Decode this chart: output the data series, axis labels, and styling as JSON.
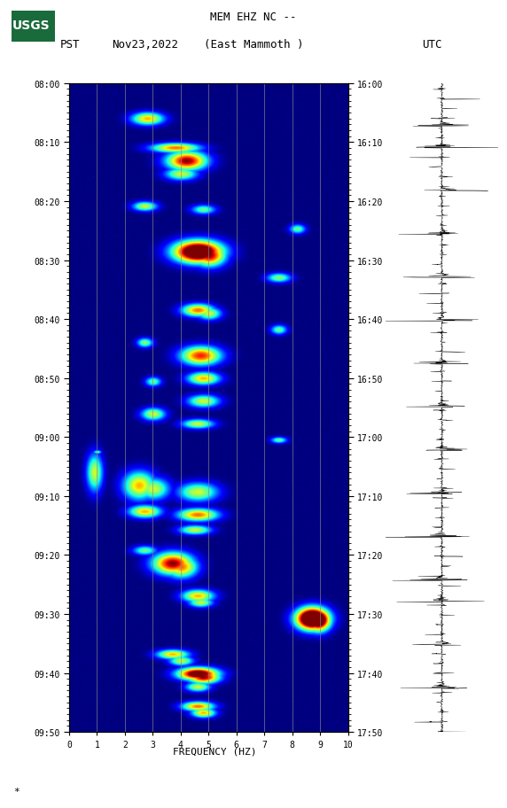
{
  "title_line1": "MEM EHZ NC --",
  "title_line2": "(East Mammoth )",
  "left_label": "PST",
  "date_label": "Nov23,2022",
  "right_label": "UTC",
  "freq_label": "FREQUENCY (HZ)",
  "left_yticks": [
    "08:00",
    "08:10",
    "08:20",
    "08:30",
    "08:40",
    "08:50",
    "09:00",
    "09:10",
    "09:20",
    "09:30",
    "09:40",
    "09:50"
  ],
  "right_yticks": [
    "16:00",
    "16:10",
    "16:20",
    "16:30",
    "16:40",
    "16:50",
    "17:00",
    "17:10",
    "17:20",
    "17:30",
    "17:40",
    "17:50"
  ],
  "xticks": [
    0,
    1,
    2,
    3,
    4,
    5,
    6,
    7,
    8,
    9,
    10
  ],
  "freq_min": 0,
  "freq_max": 10,
  "background_color": "#ffffff",
  "usgs_green": "#1a6b3c",
  "grid_color": "#888888",
  "grid_lines_x": [
    1,
    2,
    3,
    4,
    5,
    6,
    7,
    8,
    9
  ],
  "fig_width": 5.52,
  "fig_height": 8.93,
  "events": [
    [
      0.055,
      0.28,
      0.008,
      0.04,
      1.8
    ],
    [
      0.1,
      0.38,
      0.006,
      0.06,
      2.0
    ],
    [
      0.12,
      0.42,
      0.01,
      0.05,
      2.5
    ],
    [
      0.14,
      0.4,
      0.008,
      0.04,
      1.5
    ],
    [
      0.19,
      0.27,
      0.005,
      0.03,
      1.5
    ],
    [
      0.195,
      0.48,
      0.005,
      0.03,
      1.2
    ],
    [
      0.225,
      0.82,
      0.005,
      0.02,
      1.2
    ],
    [
      0.26,
      0.46,
      0.012,
      0.06,
      3.5
    ],
    [
      0.265,
      0.5,
      0.012,
      0.04,
      2.5
    ],
    [
      0.3,
      0.75,
      0.005,
      0.03,
      1.3
    ],
    [
      0.35,
      0.46,
      0.008,
      0.04,
      2.0
    ],
    [
      0.355,
      0.5,
      0.008,
      0.03,
      1.5
    ],
    [
      0.38,
      0.75,
      0.005,
      0.02,
      1.2
    ],
    [
      0.4,
      0.27,
      0.005,
      0.02,
      1.3
    ],
    [
      0.42,
      0.47,
      0.01,
      0.05,
      2.2
    ],
    [
      0.455,
      0.48,
      0.008,
      0.04,
      1.8
    ],
    [
      0.46,
      0.3,
      0.005,
      0.02,
      1.2
    ],
    [
      0.49,
      0.48,
      0.007,
      0.04,
      1.5
    ],
    [
      0.51,
      0.3,
      0.008,
      0.03,
      1.5
    ],
    [
      0.525,
      0.46,
      0.006,
      0.04,
      1.5
    ],
    [
      0.55,
      0.75,
      0.004,
      0.02,
      1.2
    ],
    [
      0.57,
      0.1,
      0.003,
      0.01,
      1.3
    ],
    [
      0.6,
      0.09,
      0.02,
      0.02,
      1.5
    ],
    [
      0.62,
      0.25,
      0.015,
      0.04,
      1.8
    ],
    [
      0.625,
      0.3,
      0.012,
      0.04,
      1.5
    ],
    [
      0.63,
      0.46,
      0.01,
      0.05,
      1.5
    ],
    [
      0.66,
      0.27,
      0.008,
      0.04,
      1.8
    ],
    [
      0.665,
      0.46,
      0.008,
      0.05,
      2.0
    ],
    [
      0.69,
      0.45,
      0.006,
      0.04,
      1.5
    ],
    [
      0.72,
      0.27,
      0.005,
      0.03,
      1.2
    ],
    [
      0.74,
      0.37,
      0.012,
      0.05,
      2.5
    ],
    [
      0.745,
      0.4,
      0.012,
      0.04,
      2.0
    ],
    [
      0.79,
      0.46,
      0.008,
      0.04,
      1.8
    ],
    [
      0.8,
      0.47,
      0.006,
      0.03,
      1.5
    ],
    [
      0.825,
      0.87,
      0.012,
      0.04,
      4.0
    ],
    [
      0.828,
      0.89,
      0.012,
      0.03,
      3.5
    ],
    [
      0.88,
      0.37,
      0.006,
      0.04,
      1.8
    ],
    [
      0.89,
      0.4,
      0.005,
      0.03,
      1.5
    ],
    [
      0.91,
      0.46,
      0.008,
      0.05,
      3.0
    ],
    [
      0.915,
      0.48,
      0.008,
      0.04,
      2.5
    ],
    [
      0.93,
      0.46,
      0.005,
      0.03,
      1.5
    ],
    [
      0.96,
      0.46,
      0.006,
      0.04,
      2.0
    ],
    [
      0.97,
      0.48,
      0.005,
      0.03,
      1.8
    ]
  ]
}
